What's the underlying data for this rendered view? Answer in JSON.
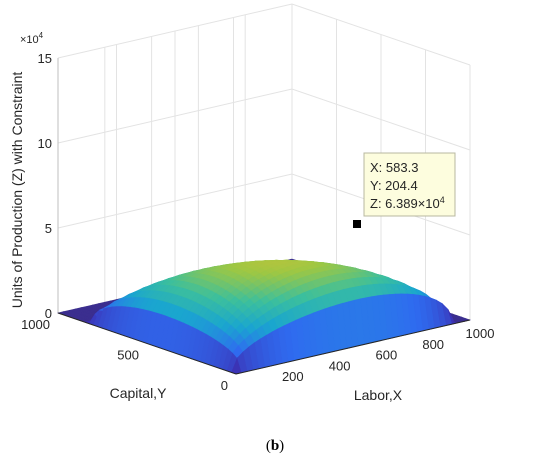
{
  "caption": {
    "open": "(",
    "letter": "b",
    "close": ")"
  },
  "colors": {
    "base": "#3b2e8f",
    "colormap": [
      "#3e26a8",
      "#2f6bf0",
      "#1aa6cf",
      "#3cbf9d",
      "#9ec743",
      "#f4bd2e",
      "#f9fb0e"
    ]
  },
  "chart_data": {
    "type": "surface3d",
    "title": "",
    "xlabel": "Labor,X",
    "ylabel": "Capital,Y",
    "zlabel": "Units of Production (Z) with Constraint",
    "z_exponent_label": "×10",
    "z_exponent_power": "4",
    "xlim": [
      0,
      1000
    ],
    "ylim": [
      0,
      1000
    ],
    "zlim": [
      0,
      15
    ],
    "x_ticks": [
      {
        "value": 200,
        "label": "200"
      },
      {
        "value": 400,
        "label": "400"
      },
      {
        "value": 600,
        "label": "600"
      },
      {
        "value": 800,
        "label": "800"
      },
      {
        "value": 1000,
        "label": "1000"
      }
    ],
    "y_ticks": [
      {
        "value": 0,
        "label": "0"
      },
      {
        "value": 500,
        "label": "500"
      },
      {
        "value": 1000,
        "label": "1000"
      }
    ],
    "z_ticks": [
      {
        "value": 0,
        "label": "0"
      },
      {
        "value": 5,
        "label": "5"
      },
      {
        "value": 10,
        "label": "10"
      },
      {
        "value": 15,
        "label": "15"
      }
    ],
    "grid": true,
    "peak_z": 6.389,
    "datatip": {
      "x": 583.3,
      "y": 204.4,
      "z": 6.389,
      "line1": "X: 583.3",
      "line2": "Y: 204.4",
      "line3": "Z: 6.389×10",
      "line3_power": "4"
    }
  }
}
